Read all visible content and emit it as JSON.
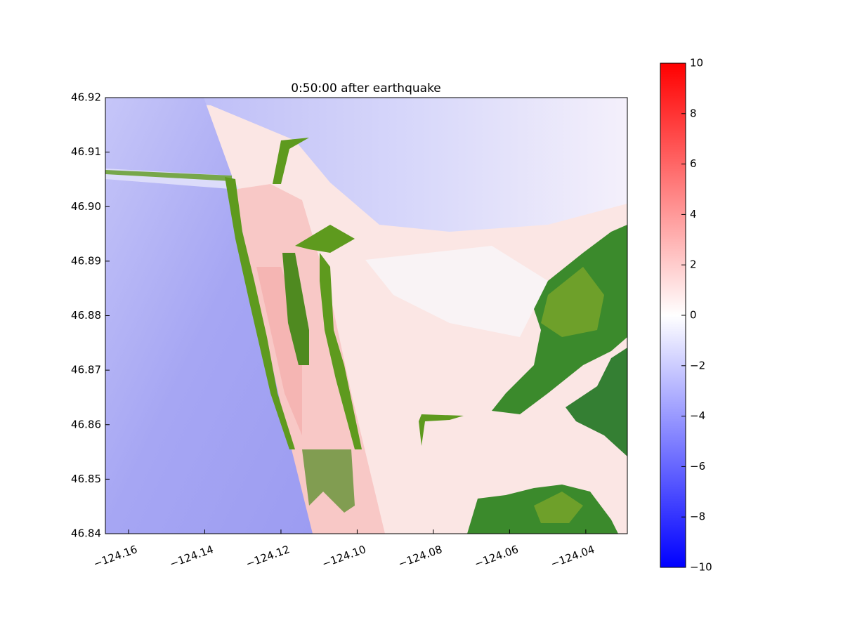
{
  "chart_data": {
    "type": "heatmap",
    "title": "0:50:00 after earthquake",
    "xlim": [
      -124.16608,
      -124.0291
    ],
    "ylim": [
      46.84,
      46.92
    ],
    "xticks": [
      {
        "value": -124.16,
        "label": "−124.16"
      },
      {
        "value": -124.14,
        "label": "−124.14"
      },
      {
        "value": -124.12,
        "label": "−124.12"
      },
      {
        "value": -124.1,
        "label": "−124.10"
      },
      {
        "value": -124.08,
        "label": "−124.08"
      },
      {
        "value": -124.06,
        "label": "−124.06"
      },
      {
        "value": -124.04,
        "label": "−124.04"
      }
    ],
    "yticks": [
      {
        "value": 46.84,
        "label": "46.84"
      },
      {
        "value": 46.85,
        "label": "46.85"
      },
      {
        "value": 46.86,
        "label": "46.86"
      },
      {
        "value": 46.87,
        "label": "46.87"
      },
      {
        "value": 46.88,
        "label": "46.88"
      },
      {
        "value": 46.89,
        "label": "46.89"
      },
      {
        "value": 46.9,
        "label": "46.90"
      },
      {
        "value": 46.91,
        "label": "46.91"
      },
      {
        "value": 46.92,
        "label": "46.92"
      }
    ],
    "colorbar": {
      "lim": [
        -10,
        10
      ],
      "ticks": [
        {
          "value": -10,
          "label": "−10"
        },
        {
          "value": -8,
          "label": "−8"
        },
        {
          "value": -6,
          "label": "−6"
        },
        {
          "value": -4,
          "label": "−4"
        },
        {
          "value": -2,
          "label": "−2"
        },
        0,
        2,
        4,
        6,
        8,
        10
      ],
      "colormap": [
        "#0000ff",
        "#ffffff",
        "#ff0000"
      ]
    }
  }
}
